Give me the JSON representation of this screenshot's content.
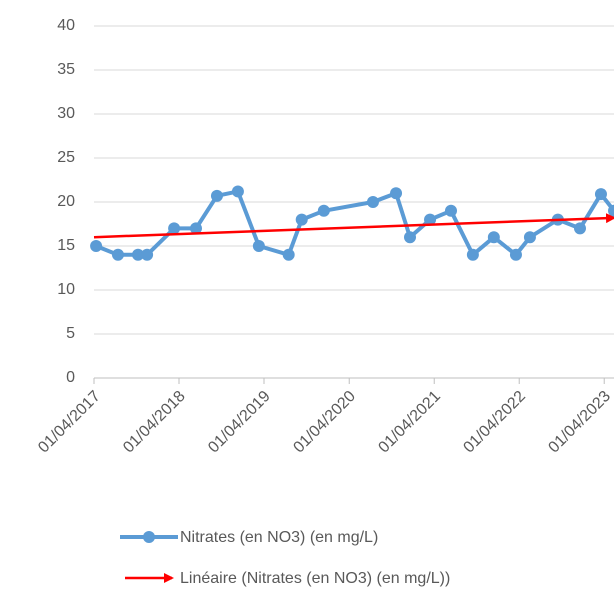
{
  "chart_data": {
    "type": "line",
    "ylim": [
      0,
      40
    ],
    "yticks": [
      0,
      5,
      10,
      15,
      20,
      25,
      30,
      35,
      40
    ],
    "xlim": [
      "2017-04-01",
      "2023-05-13"
    ],
    "xticks": [
      {
        "value": "2017-04-01",
        "label": "01/04/2017"
      },
      {
        "value": "2018-04-01",
        "label": "01/04/2018"
      },
      {
        "value": "2019-04-01",
        "label": "01/04/2019"
      },
      {
        "value": "2020-04-01",
        "label": "01/04/2020"
      },
      {
        "value": "2021-04-01",
        "label": "01/04/2021"
      },
      {
        "value": "2022-04-01",
        "label": "01/04/2022"
      },
      {
        "value": "2023-04-01",
        "label": "01/04/2023"
      }
    ],
    "grid": true,
    "legend": "bottom",
    "series": [
      {
        "name": "Nitrates (en NO3) (en mg/L)",
        "color": "#5b9bd5",
        "x": [
          "2017-04-10",
          "2017-07-13",
          "2017-10-07",
          "2017-11-15",
          "2018-03-11",
          "2018-06-13",
          "2018-09-11",
          "2018-12-10",
          "2019-03-10",
          "2019-07-16",
          "2019-09-10",
          "2019-12-14",
          "2020-07-12",
          "2020-10-19",
          "2020-12-18",
          "2021-03-14",
          "2021-06-12",
          "2021-09-14",
          "2021-12-13",
          "2022-03-18",
          "2022-05-17",
          "2022-09-14",
          "2022-12-18",
          "2023-03-18",
          "2023-05-13"
        ],
        "values": [
          15,
          14,
          14,
          14,
          17,
          17,
          20.7,
          21.2,
          15,
          14,
          18,
          19,
          20,
          21,
          16,
          18,
          19,
          14,
          16,
          14,
          16,
          18,
          17,
          20.9,
          19
        ]
      },
      {
        "name": "Linéaire (Nitrates (en NO3) (en mg/L))",
        "color": "#ff0000",
        "x": [
          "2017-04-01",
          "2023-05-13"
        ],
        "values": [
          16,
          18.2
        ]
      }
    ]
  }
}
